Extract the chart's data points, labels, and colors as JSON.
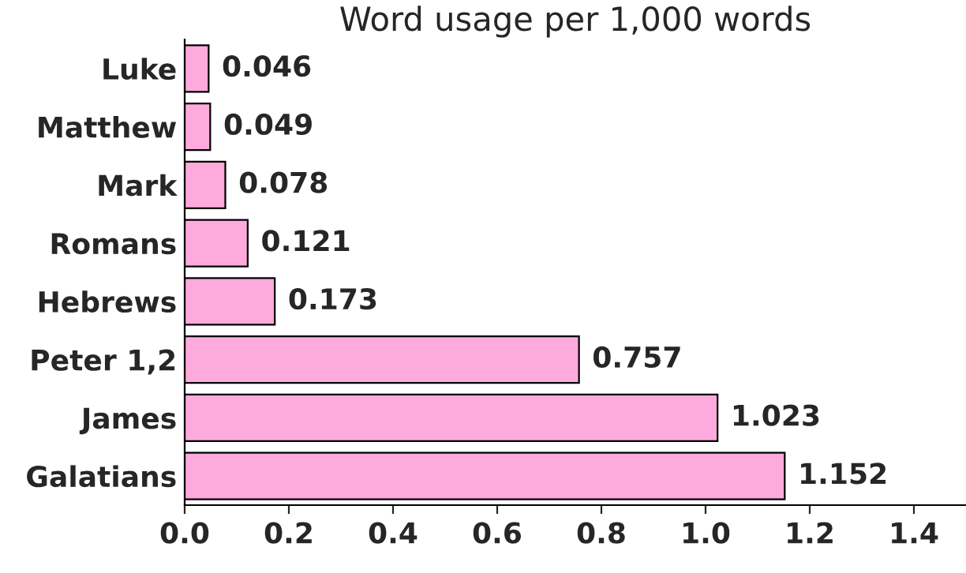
{
  "chart_data": {
    "type": "bar",
    "orientation": "horizontal",
    "title": "Word usage per 1,000 words",
    "categories": [
      "Luke",
      "Matthew",
      "Mark",
      "Romans",
      "Hebrews",
      "Peter 1,2",
      "James",
      "Galatians"
    ],
    "values": [
      0.046,
      0.049,
      0.078,
      0.121,
      0.173,
      0.757,
      1.023,
      1.152
    ],
    "color": "#ffaadd",
    "xlim": [
      0,
      1.5
    ],
    "xticks": [
      {
        "value": 0,
        "label": "0.0"
      },
      0.2,
      0.4,
      0.6,
      0.8,
      {
        "value": 1,
        "label": "1.0"
      },
      1.2,
      1.4
    ],
    "data_labels": true,
    "grid": false,
    "legend": false
  }
}
